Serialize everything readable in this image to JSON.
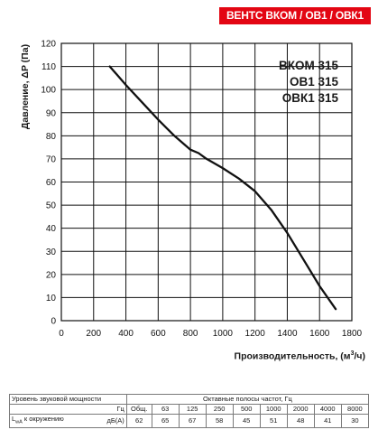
{
  "header": {
    "title": "ВЕНТС ВКОМ / ОВ1 / ОВК1"
  },
  "chart_data": {
    "type": "line",
    "title": "",
    "xlabel": "Производительность, (м³/ч)",
    "ylabel": "Давление, ΔP (Па)",
    "xlim": [
      0,
      1800
    ],
    "ylim": [
      0,
      120
    ],
    "xticks": [
      0,
      200,
      400,
      600,
      800,
      1000,
      1200,
      1400,
      1600,
      1800
    ],
    "yticks": [
      0,
      10,
      20,
      30,
      40,
      50,
      60,
      70,
      80,
      90,
      100,
      110,
      120
    ],
    "grid": true,
    "series": [
      {
        "color": "#111111",
        "x": [
          300,
          400,
          500,
          600,
          700,
          800,
          850,
          900,
          1000,
          1100,
          1200,
          1300,
          1400,
          1500,
          1600,
          1700
        ],
        "y": [
          110,
          102,
          94.5,
          87,
          80,
          74,
          72.5,
          70,
          66,
          61.5,
          56,
          48,
          38,
          26.5,
          15,
          5
        ]
      }
    ],
    "labels": [
      "ВКОМ 315",
      "ОВ1 315",
      "ОВК1 315"
    ]
  },
  "table": {
    "row1": {
      "label": "Уровень звуковой мощности",
      "group_header": "Октавные полосы частот, Гц"
    },
    "row2": {
      "unit": "Гц",
      "total": "Общ.",
      "freqs": [
        "63",
        "125",
        "250",
        "500",
        "1000",
        "2000",
        "4000",
        "8000"
      ]
    },
    "row3": {
      "label_main": "L",
      "label_sub": "wA",
      "label_rest": " к окружению",
      "unit": "дБ(А)",
      "values": [
        "62",
        "65",
        "67",
        "58",
        "45",
        "51",
        "48",
        "41",
        "30"
      ]
    }
  }
}
